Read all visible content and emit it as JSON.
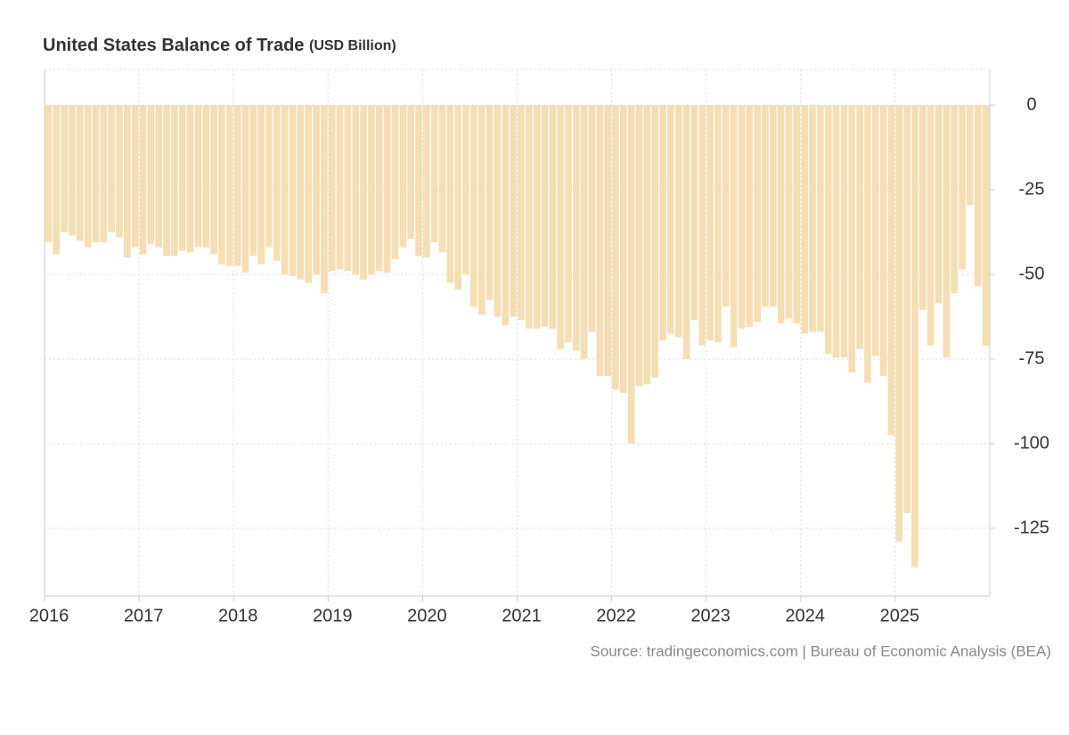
{
  "chart_data": {
    "type": "bar",
    "title": "United States Balance of Trade",
    "subtitle": "(USD Billion)",
    "source": "Source: tradingeconomics.com | Bureau of Economic Analysis (BEA)",
    "color": "#f5deb3",
    "grid": true,
    "ylim": [
      -145,
      10
    ],
    "yticks": [
      0,
      -25,
      -50,
      -75,
      -100,
      -125
    ],
    "categories": [
      "2016",
      null,
      null,
      null,
      null,
      null,
      null,
      null,
      null,
      null,
      null,
      null,
      "2017",
      null,
      null,
      null,
      null,
      null,
      null,
      null,
      null,
      null,
      null,
      null,
      "2018",
      null,
      null,
      null,
      null,
      null,
      null,
      null,
      null,
      null,
      null,
      null,
      "2019",
      null,
      null,
      null,
      null,
      null,
      null,
      null,
      null,
      null,
      null,
      null,
      "2020",
      null,
      null,
      null,
      null,
      null,
      null,
      null,
      null,
      null,
      null,
      null,
      "2021",
      null,
      null,
      null,
      null,
      null,
      null,
      null,
      null,
      null,
      null,
      null,
      "2022",
      null,
      null,
      null,
      null,
      null,
      null,
      null,
      null,
      null,
      null,
      null,
      "2023",
      null,
      null,
      null,
      null,
      null,
      null,
      null,
      null,
      null,
      null,
      null,
      "2024",
      null,
      null,
      null,
      null,
      null,
      null,
      null,
      null,
      null,
      null,
      null,
      "2025",
      null,
      null,
      null,
      null,
      null,
      null,
      null,
      null,
      null,
      null,
      null
    ],
    "values": [
      -40.5,
      -44,
      -37.5,
      -38.5,
      -40,
      -42,
      -40.5,
      -40.5,
      -37.5,
      -39,
      -45,
      -42,
      -44,
      -41,
      -42,
      -44.5,
      -44.5,
      -43,
      -43.5,
      -42,
      -42,
      -44,
      -47,
      -47.5,
      -47.5,
      -49.5,
      -44.5,
      -47,
      -42,
      -46,
      -50,
      -50.5,
      -51.5,
      -52.5,
      -50,
      -55.5,
      -49,
      -48.5,
      -49,
      -50,
      -51.5,
      -50,
      -49,
      -49.5,
      -45.5,
      -42,
      -39.5,
      -44.5,
      -45,
      -40.5,
      -43.5,
      -52.5,
      -54.5,
      -50,
      -59.5,
      -62,
      -57.5,
      -62.5,
      -65,
      -62.5,
      -63.5,
      -66,
      -66,
      -65.5,
      -66,
      -72,
      -70,
      -72.5,
      -75,
      -67,
      -80,
      -80,
      -84,
      -85,
      -100,
      -83,
      -82.5,
      -80.5,
      -69.5,
      -67.5,
      -68.5,
      -75,
      -63.5,
      -71,
      -69.5,
      -70,
      -59.5,
      -71.5,
      -66,
      -65.5,
      -64,
      -59.5,
      -59.5,
      -64.5,
      -63,
      -64.5,
      -67.5,
      -67,
      -67,
      -73.5,
      -74.5,
      -74.5,
      -79,
      -72,
      -82,
      -74,
      -80,
      -97.5,
      -129,
      -120.5,
      -136.5,
      -60.5,
      -71,
      -58.5,
      -74.5,
      -55.5,
      -48.5,
      -29.5,
      -53.5,
      -71
    ]
  }
}
